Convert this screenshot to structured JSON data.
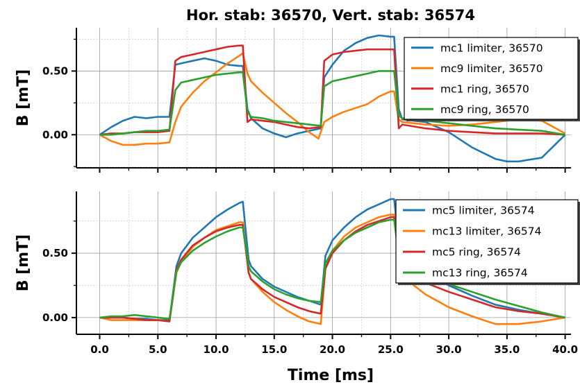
{
  "chart_data": [
    {
      "type": "line",
      "title": "Hor. stab: 36570, Vert. stab: 36574",
      "xlabel": "",
      "ylabel": "B [mT]",
      "xlim": [
        -2,
        40.5
      ],
      "ylim": [
        -0.26,
        0.84
      ],
      "yticks": [
        0.0,
        0.5
      ],
      "yticklabels": [
        "0.00",
        "0.50"
      ],
      "grid": true,
      "legend_position": "top-right",
      "series": [
        {
          "name": "mc1 limiter, 36570",
          "color": "#1f77b4",
          "x": [
            0,
            1,
            2,
            3,
            4,
            5,
            6,
            6.5,
            7,
            8,
            9,
            10,
            11,
            12,
            12.3,
            12.7,
            13,
            14,
            15,
            16,
            17,
            18,
            19,
            19.3,
            20,
            21,
            22,
            23,
            24,
            25,
            25.3,
            25.7,
            26,
            28,
            30,
            32,
            34,
            35,
            36,
            38,
            40
          ],
          "y": [
            0,
            0.06,
            0.11,
            0.14,
            0.13,
            0.14,
            0.14,
            0.55,
            0.56,
            0.58,
            0.6,
            0.58,
            0.55,
            0.54,
            0.54,
            0.2,
            0.13,
            0.05,
            0.01,
            -0.02,
            0.01,
            0.03,
            0.05,
            0.45,
            0.55,
            0.66,
            0.72,
            0.76,
            0.78,
            0.77,
            0.77,
            0.2,
            0.12,
            0.1,
            0.02,
            -0.1,
            -0.19,
            -0.21,
            -0.21,
            -0.18,
            0
          ]
        },
        {
          "name": "mc9 limiter, 36570",
          "color": "#ff7f0e",
          "x": [
            0,
            1,
            2,
            3,
            4,
            5,
            6,
            6.5,
            7,
            8,
            9,
            10,
            11,
            12,
            12.3,
            12.7,
            13,
            14,
            15,
            16,
            17,
            18,
            18.8,
            19.3,
            20,
            21,
            22,
            23,
            24,
            25,
            25.3,
            25.7,
            26,
            28,
            30,
            32,
            34,
            36,
            38,
            40
          ],
          "y": [
            0,
            -0.05,
            -0.08,
            -0.08,
            -0.07,
            -0.07,
            -0.06,
            0.1,
            0.22,
            0.33,
            0.42,
            0.49,
            0.56,
            0.62,
            0.64,
            0.48,
            0.42,
            0.33,
            0.25,
            0.17,
            0.1,
            0.02,
            -0.03,
            0.1,
            0.14,
            0.18,
            0.21,
            0.24,
            0.3,
            0.34,
            0.34,
            0.12,
            0.1,
            0.08,
            0.07,
            0.08,
            0.1,
            0.12,
            0.11,
            0.01
          ]
        },
        {
          "name": "mc1 ring, 36570",
          "color": "#d62728",
          "x": [
            0,
            1,
            2,
            3,
            4,
            5,
            6,
            6.5,
            7,
            8,
            9,
            10,
            11,
            12,
            12.3,
            12.7,
            13,
            14,
            15,
            16,
            17,
            18,
            19,
            19.3,
            20,
            21,
            22,
            23,
            24,
            25,
            25.3,
            25.7,
            26,
            28,
            30,
            32,
            34,
            36,
            38,
            40
          ],
          "y": [
            0,
            0.01,
            0.01,
            0.02,
            0.02,
            0.02,
            0.03,
            0.58,
            0.61,
            0.63,
            0.65,
            0.67,
            0.69,
            0.7,
            0.7,
            0.1,
            0.12,
            0.11,
            0.1,
            0.08,
            0.06,
            0.05,
            0.06,
            0.58,
            0.63,
            0.65,
            0.66,
            0.67,
            0.67,
            0.67,
            0.67,
            0.05,
            0.08,
            0.05,
            0.03,
            0.02,
            0.01,
            0.01,
            0.01,
            0
          ]
        },
        {
          "name": "mc9 ring, 36570",
          "color": "#2ca02c",
          "x": [
            0,
            1,
            2,
            3,
            4,
            5,
            6,
            6.5,
            7,
            8,
            9,
            10,
            11,
            12,
            12.3,
            12.7,
            13,
            14,
            15,
            16,
            17,
            18,
            19,
            19.3,
            20,
            21,
            22,
            23,
            24,
            25,
            25.3,
            25.7,
            26,
            28,
            30,
            32,
            34,
            36,
            38,
            40
          ],
          "y": [
            0,
            0,
            0.01,
            0.02,
            0.03,
            0.03,
            0.04,
            0.35,
            0.41,
            0.43,
            0.45,
            0.47,
            0.48,
            0.49,
            0.49,
            0.18,
            0.14,
            0.13,
            0.11,
            0.1,
            0.09,
            0.08,
            0.07,
            0.38,
            0.42,
            0.44,
            0.46,
            0.48,
            0.5,
            0.5,
            0.5,
            0.15,
            0.13,
            0.11,
            0.09,
            0.07,
            0.05,
            0.04,
            0.03,
            0
          ]
        }
      ]
    },
    {
      "type": "line",
      "title": "",
      "xlabel": "Time [ms]",
      "ylabel": "B [mT]",
      "xlim": [
        -2,
        40.5
      ],
      "ylim": [
        -0.13,
        0.98
      ],
      "xticks": [
        0,
        5,
        10,
        15,
        20,
        25,
        30,
        35,
        40
      ],
      "xticklabels": [
        "0.0",
        "5.0",
        "10.0",
        "15.0",
        "20.0",
        "25.0",
        "30.0",
        "35.0",
        "40.0"
      ],
      "yticks": [
        0.0,
        0.5
      ],
      "yticklabels": [
        "0.00",
        "0.50"
      ],
      "grid": true,
      "legend_position": "top-right",
      "series": [
        {
          "name": "mc5 limiter, 36574",
          "color": "#1f77b4",
          "x": [
            0,
            1,
            2,
            3,
            4,
            5,
            6,
            6.6,
            7,
            8,
            9,
            10,
            11,
            12,
            12.3,
            12.8,
            13,
            14,
            15,
            16,
            17,
            18,
            19,
            19.4,
            20,
            21,
            22,
            23,
            24,
            25,
            25.3,
            25.8,
            26,
            28,
            30,
            32,
            34,
            36,
            38,
            40
          ],
          "y": [
            0,
            0,
            0,
            -0.01,
            -0.01,
            -0.02,
            -0.02,
            0.4,
            0.5,
            0.62,
            0.7,
            0.78,
            0.84,
            0.89,
            0.9,
            0.45,
            0.4,
            0.3,
            0.24,
            0.2,
            0.16,
            0.13,
            0.1,
            0.48,
            0.6,
            0.7,
            0.78,
            0.84,
            0.88,
            0.92,
            0.92,
            0.5,
            0.48,
            0.35,
            0.25,
            0.17,
            0.1,
            0.06,
            0.03,
            0
          ]
        },
        {
          "name": "mc13 limiter, 36574",
          "color": "#ff7f0e",
          "x": [
            0,
            1,
            2,
            3,
            4,
            5,
            6,
            6.6,
            7,
            8,
            9,
            10,
            11,
            12,
            12.3,
            12.8,
            13,
            14,
            15,
            16,
            17,
            18,
            19,
            19.4,
            20,
            21,
            22,
            23,
            24,
            25,
            25.3,
            25.8,
            26,
            28,
            30,
            32,
            34,
            36,
            38,
            40
          ],
          "y": [
            0,
            -0.02,
            -0.02,
            -0.02,
            -0.02,
            -0.02,
            -0.03,
            0.35,
            0.43,
            0.55,
            0.62,
            0.68,
            0.71,
            0.74,
            0.74,
            0.35,
            0.3,
            0.2,
            0.12,
            0.06,
            0.01,
            -0.03,
            -0.05,
            0.38,
            0.52,
            0.63,
            0.7,
            0.74,
            0.78,
            0.8,
            0.8,
            0.4,
            0.32,
            0.18,
            0.08,
            0.01,
            -0.05,
            -0.05,
            -0.03,
            0
          ]
        },
        {
          "name": "mc5 ring, 36574",
          "color": "#d62728",
          "x": [
            0,
            1,
            2,
            3,
            4,
            5,
            6,
            6.6,
            7,
            8,
            9,
            10,
            11,
            12,
            12.3,
            12.8,
            13,
            14,
            15,
            16,
            17,
            18,
            19,
            19.4,
            20,
            21,
            22,
            23,
            24,
            25,
            25.3,
            25.8,
            26,
            28,
            30,
            32,
            34,
            36,
            38,
            40
          ],
          "y": [
            0,
            0,
            0,
            -0.01,
            -0.02,
            -0.02,
            -0.03,
            0.37,
            0.45,
            0.56,
            0.62,
            0.67,
            0.7,
            0.72,
            0.72,
            0.35,
            0.3,
            0.22,
            0.16,
            0.12,
            0.08,
            0.05,
            0.03,
            0.38,
            0.5,
            0.6,
            0.67,
            0.72,
            0.75,
            0.78,
            0.78,
            0.4,
            0.36,
            0.27,
            0.2,
            0.14,
            0.08,
            0.05,
            0.03,
            0
          ]
        },
        {
          "name": "mc13 ring, 36574",
          "color": "#2ca02c",
          "x": [
            0,
            1,
            2,
            3,
            4,
            5,
            6,
            6.6,
            7,
            8,
            9,
            10,
            11,
            12,
            12.3,
            12.8,
            13,
            14,
            15,
            16,
            17,
            18,
            19,
            19.4,
            20,
            21,
            22,
            23,
            24,
            25,
            25.3,
            25.8,
            26,
            28,
            30,
            32,
            34,
            36,
            38,
            40
          ],
          "y": [
            0,
            0.01,
            0.01,
            0.02,
            0.01,
            0,
            -0.01,
            0.36,
            0.43,
            0.52,
            0.58,
            0.63,
            0.67,
            0.7,
            0.7,
            0.4,
            0.36,
            0.28,
            0.22,
            0.18,
            0.15,
            0.13,
            0.12,
            0.42,
            0.52,
            0.6,
            0.66,
            0.7,
            0.74,
            0.76,
            0.76,
            0.42,
            0.4,
            0.32,
            0.26,
            0.2,
            0.14,
            0.09,
            0.04,
            0
          ]
        }
      ]
    }
  ]
}
